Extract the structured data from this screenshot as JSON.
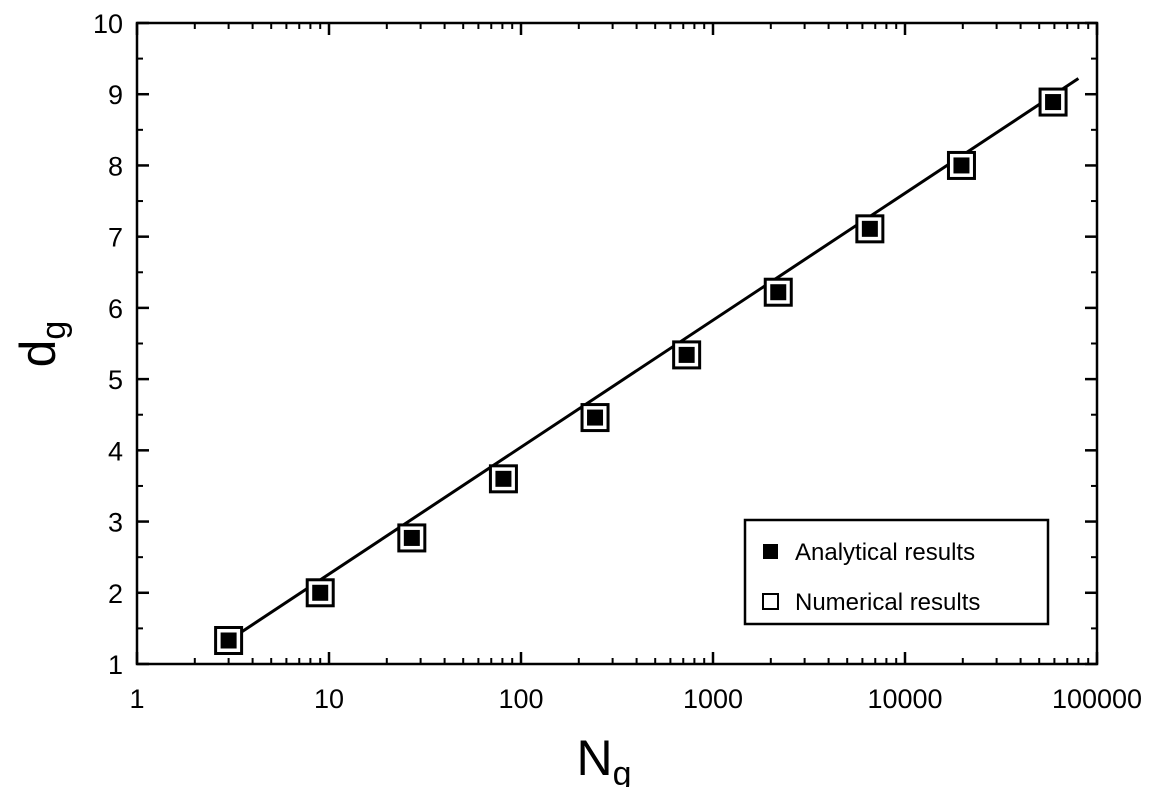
{
  "chart_data": {
    "type": "scatter",
    "xscale": "log",
    "xlim": [
      1,
      100000
    ],
    "ylim": [
      1,
      10
    ],
    "xticks": [
      "1",
      "10",
      "100",
      "1000",
      "10000",
      "100000"
    ],
    "yticks": [
      "1",
      "2",
      "3",
      "4",
      "5",
      "6",
      "7",
      "8",
      "9",
      "10"
    ],
    "xlabel": {
      "main": "N",
      "sub": "g"
    },
    "ylabel": {
      "main": "d",
      "sub": "g"
    },
    "legend_position": "bottom-right",
    "series": [
      {
        "name": "Analytical results",
        "marker": "filled-square",
        "x": [
          3,
          9,
          27,
          81,
          243,
          729,
          2187,
          6561,
          19683,
          59049
        ],
        "y": [
          1.33,
          2.0,
          2.77,
          3.6,
          4.46,
          5.34,
          6.22,
          7.11,
          8.0,
          8.89
        ]
      },
      {
        "name": "Numerical results",
        "marker": "open-square",
        "x": [
          3,
          9,
          27,
          81,
          243,
          729,
          2187,
          6561,
          19683,
          59049
        ],
        "y": [
          1.33,
          2.0,
          2.77,
          3.6,
          4.46,
          5.34,
          6.22,
          7.11,
          8.0,
          8.89
        ]
      }
    ],
    "fit_line": {
      "x": [
        3,
        80000
      ],
      "y": [
        1.33,
        9.22
      ]
    },
    "colors": {
      "axis": "#000000",
      "marker_fill": "#000000",
      "marker_open": "#ffffff"
    }
  }
}
